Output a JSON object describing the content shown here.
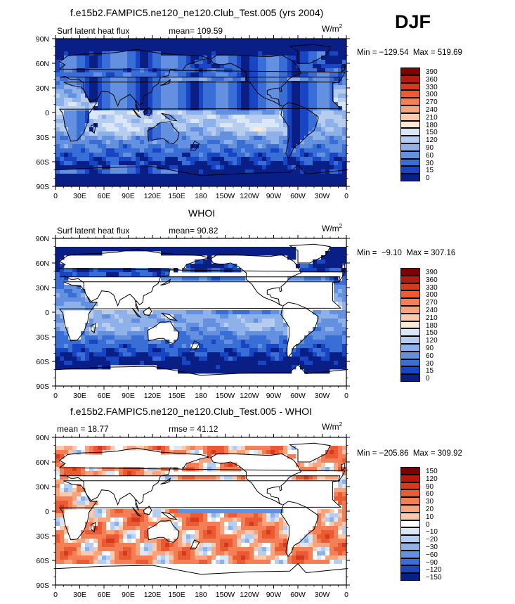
{
  "season": "DJF",
  "chart_data": [
    {
      "type": "heatmap",
      "title": "f.e15b2.FAMPIC5.ne120_ne120.Club_Test.005 (yrs 2004)",
      "left_text": "Surf latent heat flux",
      "center_text": "mean= 109.59",
      "units": "W/m",
      "minmax": "Min = −129.54  Max = 519.69",
      "x_ticks": [
        "0",
        "30E",
        "60E",
        "90E",
        "120E",
        "150E",
        "180",
        "150W",
        "120W",
        "90W",
        "60W",
        "30W",
        "0"
      ],
      "y_ticks": [
        "90N",
        "60N",
        "30N",
        "0",
        "30S",
        "60S",
        "90S"
      ],
      "levels": [
        "390",
        "360",
        "330",
        "300",
        "270",
        "240",
        "210",
        "180",
        "150",
        "120",
        "90",
        "60",
        "30",
        "15",
        "0"
      ]
    },
    {
      "type": "heatmap",
      "title": "WHOI",
      "left_text": "Surf latent heat flux",
      "center_text": "mean=  90.82",
      "units": "W/m",
      "minmax": "Min =  −9.10  Max = 307.16",
      "x_ticks": [
        "0",
        "30E",
        "60E",
        "90E",
        "120E",
        "150E",
        "180",
        "150W",
        "120W",
        "90W",
        "60W",
        "30W",
        "0"
      ],
      "y_ticks": [
        "90N",
        "60N",
        "30N",
        "0",
        "30S",
        "60S",
        "90S"
      ],
      "levels": [
        "390",
        "360",
        "330",
        "300",
        "270",
        "240",
        "210",
        "180",
        "150",
        "120",
        "90",
        "60",
        "30",
        "15",
        "0"
      ]
    },
    {
      "type": "heatmap",
      "title": "f.e15b2.FAMPIC5.ne120_ne120.Club_Test.005 - WHOI",
      "left_text": "mean =  18.77",
      "center_text": "rmse =  41.12",
      "units": "W/m",
      "minmax": "Min = −205.86  Max = 309.92",
      "x_ticks": [
        "0",
        "30E",
        "60E",
        "90E",
        "120E",
        "150E",
        "180",
        "150W",
        "120W",
        "90W",
        "60W",
        "30W",
        "0"
      ],
      "y_ticks": [
        "90N",
        "60N",
        "30N",
        "0",
        "30S",
        "60S",
        "90S"
      ],
      "levels": [
        "150",
        "120",
        "90",
        "60",
        "30",
        "20",
        "10",
        "0",
        "−10",
        "−20",
        "−30",
        "−60",
        "−90",
        "−120",
        "−150"
      ]
    }
  ],
  "colors": {
    "flux_scale": [
      "#7f0000",
      "#b41a10",
      "#d63a1c",
      "#ea5b34",
      "#f47e55",
      "#f8a47f",
      "#fbc9ab",
      "#fde9d6",
      "#d9e7f6",
      "#b6cdf0",
      "#8fb1ea",
      "#6490e0",
      "#386ed6",
      "#1745c4",
      "#0a1f86"
    ],
    "diff_scale": [
      "#7f0000",
      "#b41a10",
      "#d63a1c",
      "#ea5b34",
      "#f47e55",
      "#f8a47f",
      "#fbc9ab",
      "#ffffff",
      "#d9e7f6",
      "#b6cdf0",
      "#8fb1ea",
      "#6490e0",
      "#386ed6",
      "#1745c4",
      "#0a1f86"
    ]
  }
}
